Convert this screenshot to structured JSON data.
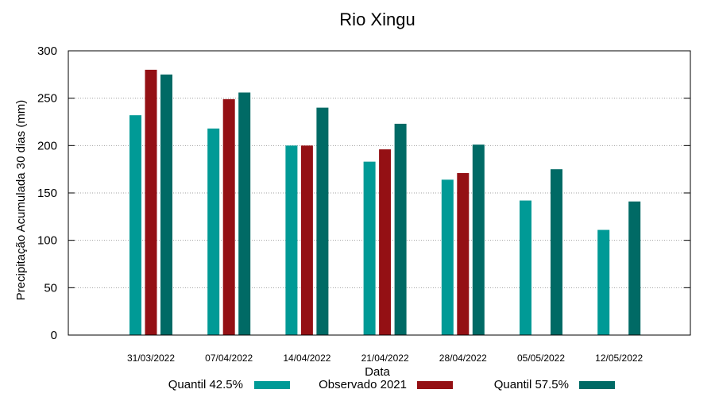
{
  "chart_data": {
    "type": "bar",
    "title": "Rio Xingu",
    "xlabel": "Data",
    "ylabel": "Precipitação Acumulada 30 dias (mm)",
    "ylim": [
      0,
      300
    ],
    "yticks": [
      0,
      50,
      100,
      150,
      200,
      250,
      300
    ],
    "grid": true,
    "legend_position": "bottom",
    "categories": [
      "31/03/2022",
      "07/04/2022",
      "14/04/2022",
      "21/04/2022",
      "28/04/2022",
      "05/05/2022",
      "12/05/2022"
    ],
    "series": [
      {
        "name": "Quantil 42.5%",
        "color": "#009a96",
        "values": [
          232,
          218,
          200,
          183,
          164,
          142,
          111
        ]
      },
      {
        "name": "Observado 2021",
        "color": "#941014",
        "values": [
          280,
          249,
          200,
          196,
          171,
          null,
          null
        ]
      },
      {
        "name": "Quantil 57.5%",
        "color": "#006a65",
        "values": [
          275,
          256,
          240,
          223,
          201,
          175,
          141
        ]
      }
    ]
  }
}
